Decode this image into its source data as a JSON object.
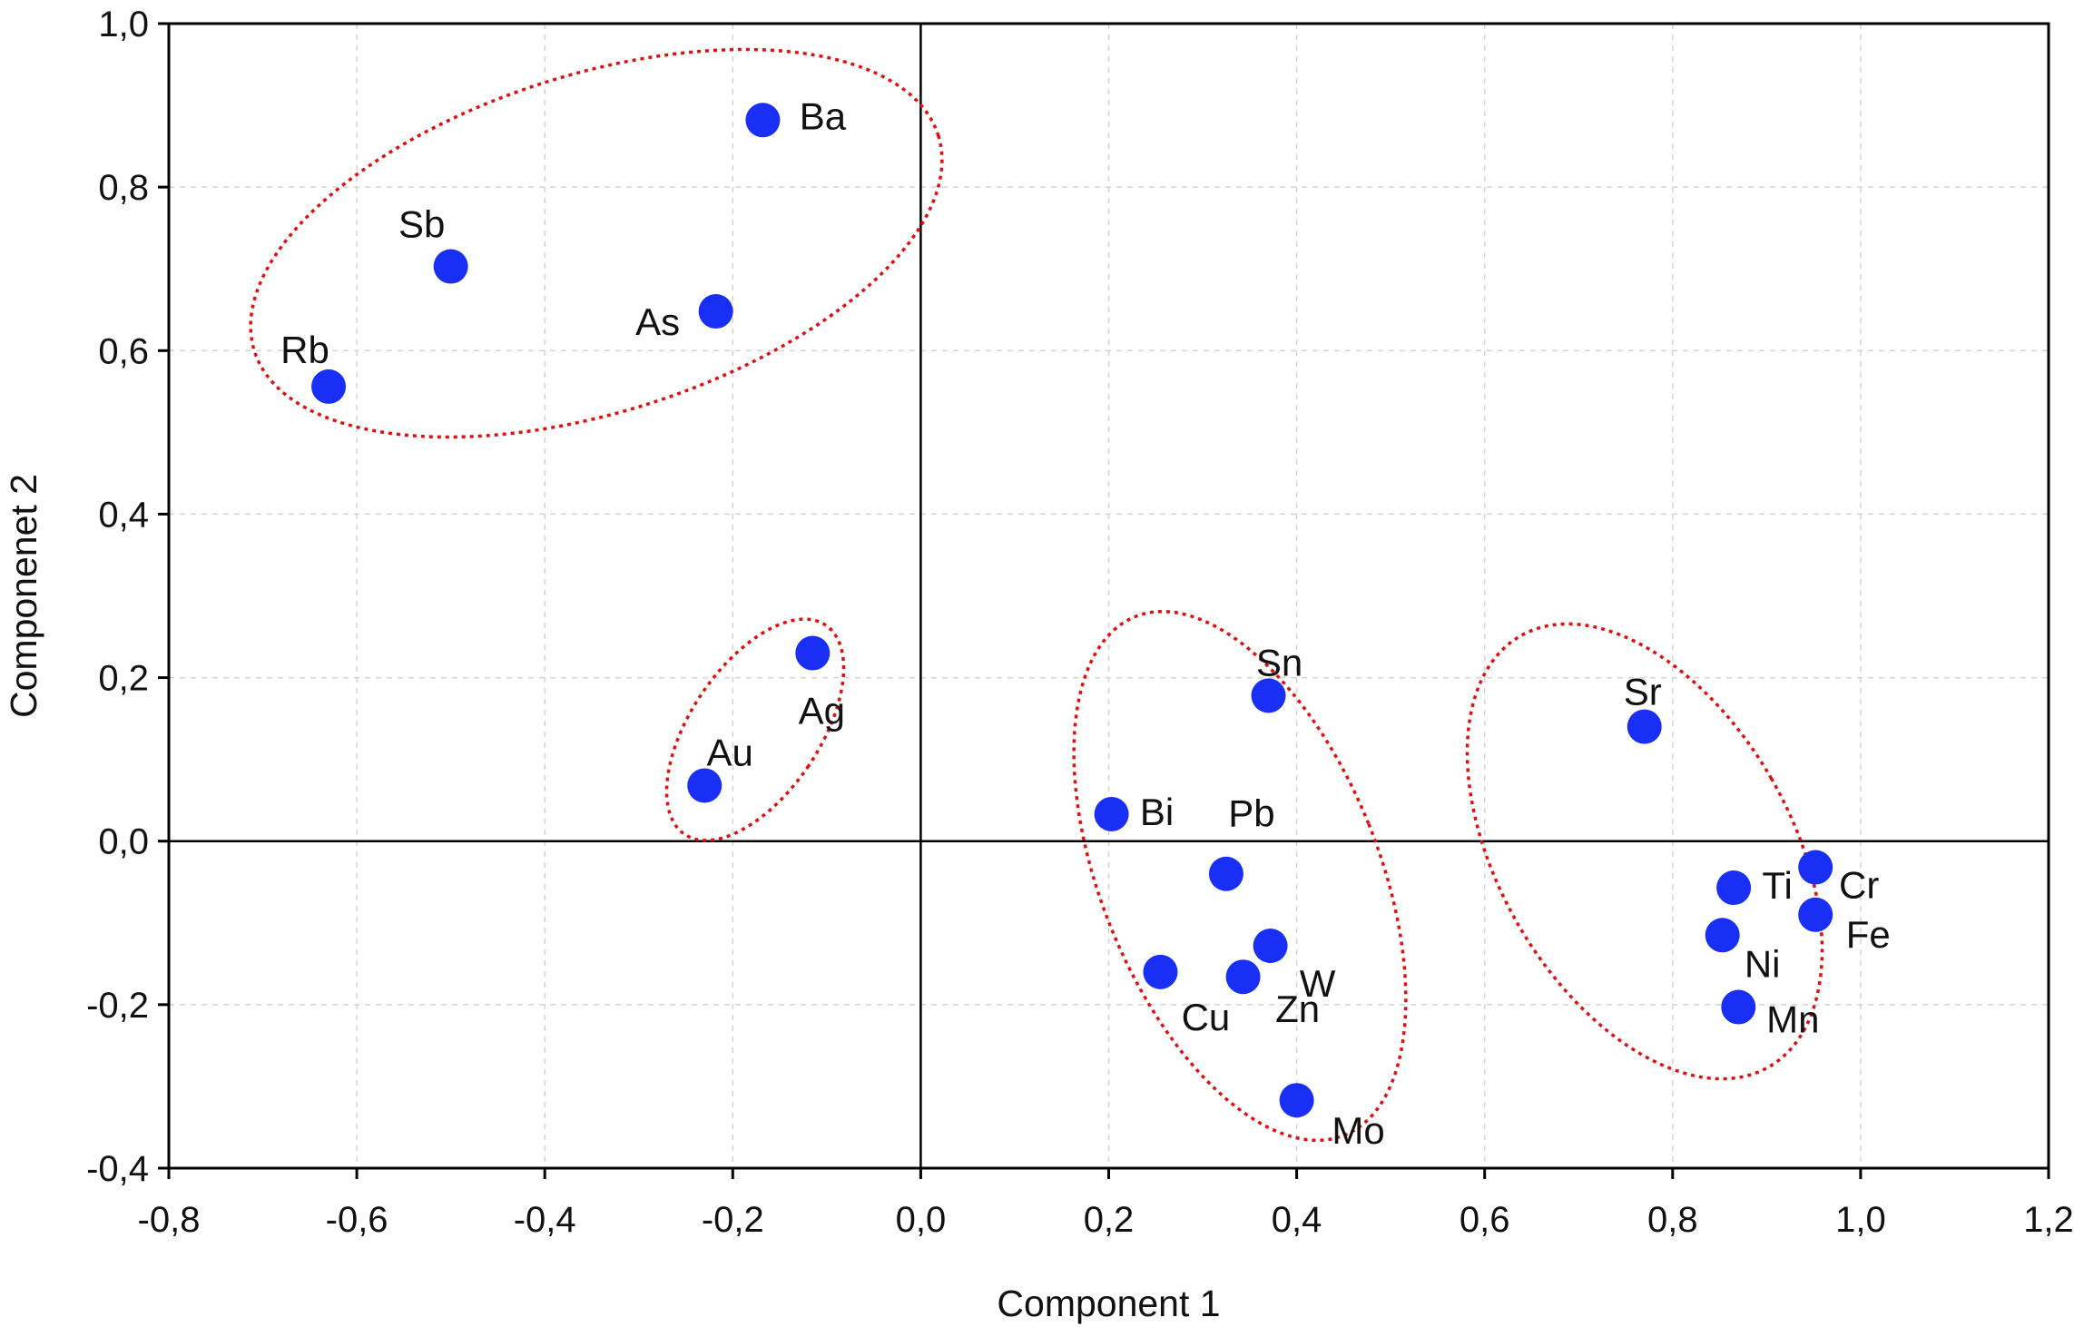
{
  "chart_data": {
    "type": "scatter",
    "title": "",
    "xlabel": "Component 1",
    "ylabel": "Componenet 2",
    "xlim": [
      -0.8,
      1.2
    ],
    "ylim": [
      -0.4,
      1.0
    ],
    "xticks": [
      "-0,8",
      "-0,6",
      "-0,4",
      "-0,2",
      "0,0",
      "0,2",
      "0,4",
      "0,6",
      "0,8",
      "1,0",
      "1,2"
    ],
    "yticks": [
      "1,0",
      "0,8",
      "0,6",
      "0,4",
      "0,2",
      "0,0",
      "-0,2",
      "-0,4"
    ],
    "grid": true,
    "point_color": "#1a2ff5",
    "cluster_outline_color": "#e01010",
    "points": [
      {
        "label": "Ba",
        "x": -0.168,
        "y": 0.882
      },
      {
        "label": "Sb",
        "x": -0.5,
        "y": 0.703
      },
      {
        "label": "As",
        "x": -0.218,
        "y": 0.648
      },
      {
        "label": "Rb",
        "x": -0.63,
        "y": 0.556
      },
      {
        "label": "Ag",
        "x": -0.115,
        "y": 0.23
      },
      {
        "label": "Au",
        "x": -0.23,
        "y": 0.068
      },
      {
        "label": "Sn",
        "x": 0.37,
        "y": 0.178
      },
      {
        "label": "Bi",
        "x": 0.203,
        "y": 0.033
      },
      {
        "label": "Pb",
        "x": 0.325,
        "y": -0.04
      },
      {
        "label": "W",
        "x": 0.372,
        "y": -0.128
      },
      {
        "label": "Zn",
        "x": 0.343,
        "y": -0.166
      },
      {
        "label": "Cu",
        "x": 0.255,
        "y": -0.16
      },
      {
        "label": "Mo",
        "x": 0.4,
        "y": -0.317
      },
      {
        "label": "Sr",
        "x": 0.77,
        "y": 0.14
      },
      {
        "label": "Ti",
        "x": 0.865,
        "y": -0.057
      },
      {
        "label": "Cr",
        "x": 0.952,
        "y": -0.032
      },
      {
        "label": "Fe",
        "x": 0.952,
        "y": -0.09
      },
      {
        "label": "Ni",
        "x": 0.853,
        "y": -0.115
      },
      {
        "label": "Mn",
        "x": 0.87,
        "y": -0.203
      }
    ],
    "clusters": [
      {
        "members": [
          "Ba",
          "Sb",
          "As",
          "Rb"
        ]
      },
      {
        "members": [
          "Ag",
          "Au"
        ]
      },
      {
        "members": [
          "Sn",
          "Bi",
          "Pb",
          "W",
          "Zn",
          "Cu",
          "Mo"
        ]
      },
      {
        "members": [
          "Sr",
          "Ti",
          "Cr",
          "Fe",
          "Ni",
          "Mn"
        ]
      }
    ]
  }
}
